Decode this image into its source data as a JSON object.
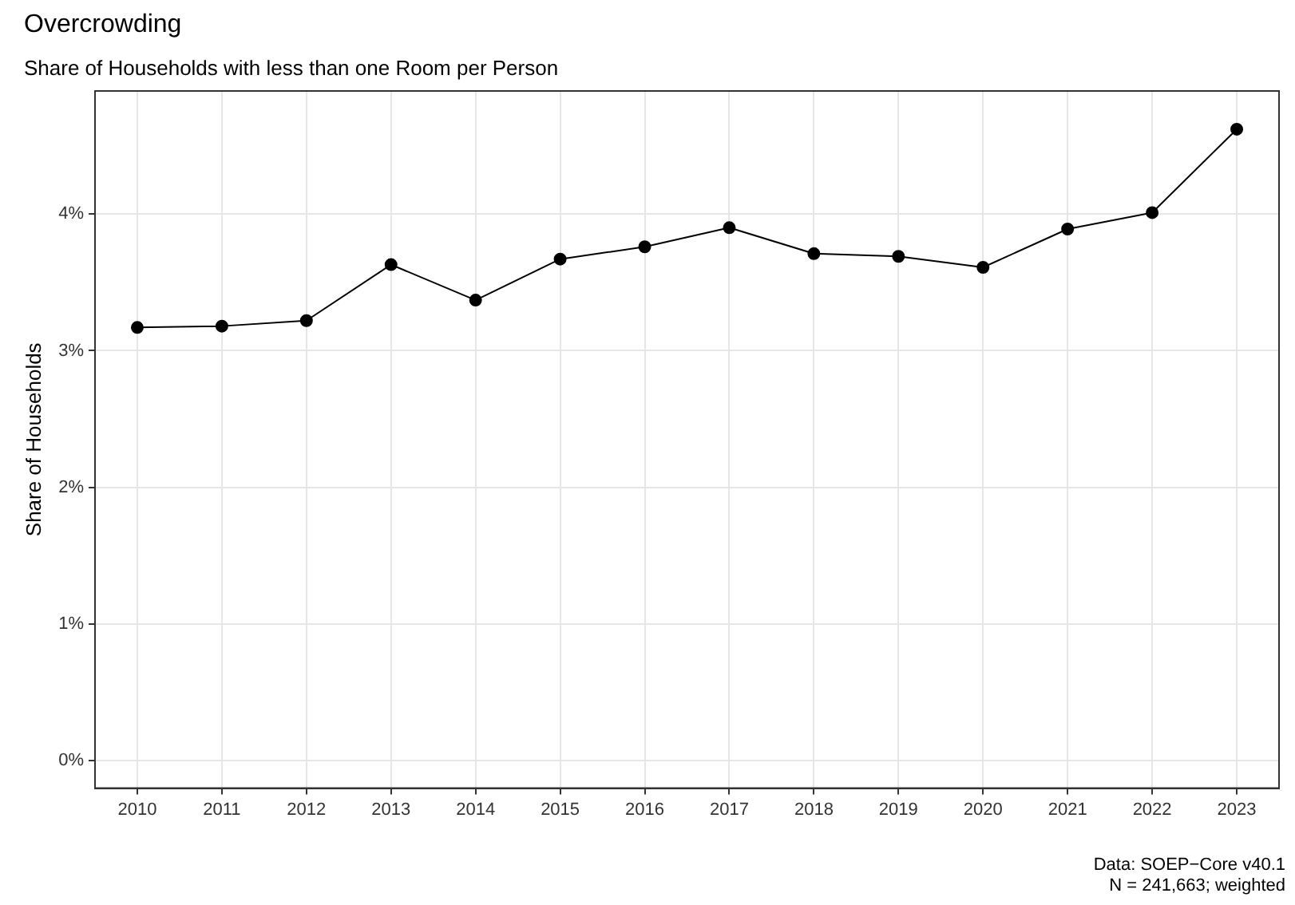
{
  "chart_data": {
    "type": "line",
    "title": "Overcrowding",
    "subtitle": "Share of Households with less than one Room per Person",
    "ylabel": "Share of Households",
    "categories": [
      "2010",
      "2011",
      "2012",
      "2013",
      "2014",
      "2015",
      "2016",
      "2017",
      "2018",
      "2019",
      "2020",
      "2021",
      "2022",
      "2023"
    ],
    "series": [
      {
        "color": "#000000",
        "values": [
          3.17,
          3.18,
          3.22,
          3.63,
          3.37,
          3.67,
          3.76,
          3.9,
          3.71,
          3.69,
          3.61,
          3.89,
          4.01,
          4.62
        ]
      }
    ],
    "ylim": [
      -0.2,
      4.9
    ],
    "yticks": [
      {
        "value": 0,
        "label": "0%"
      },
      {
        "value": 1,
        "label": "1%"
      },
      {
        "value": 2,
        "label": "2%"
      },
      {
        "value": 3,
        "label": "3%"
      },
      {
        "value": 4,
        "label": "4%"
      }
    ],
    "grid": true,
    "legend": false,
    "marker": "circle",
    "line_style": "solid",
    "annotations": [
      "Data: SOEP−Core v40.1",
      "N = 241,663; weighted"
    ]
  }
}
